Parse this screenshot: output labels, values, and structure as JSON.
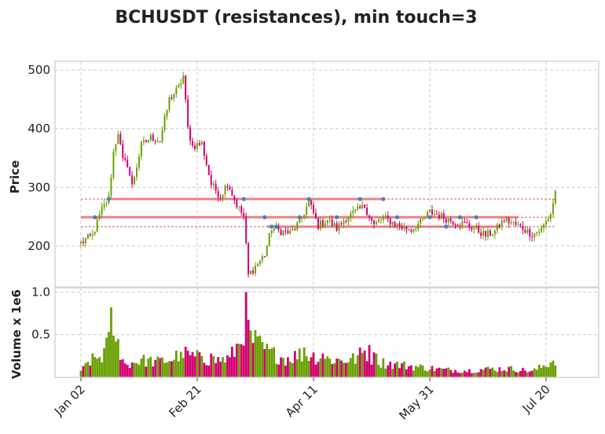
{
  "chart_data": {
    "type": "candlestick",
    "title": "BCHUSDT (resistances), min touch=3",
    "ylabel_price": "Price",
    "ylabel_volume": "Volume x 1e6",
    "x_ticks": [
      "Jan 02",
      "Feb 21",
      "Apr 11",
      "May 31",
      "Jul 20"
    ],
    "price_ylim": [
      130,
      515
    ],
    "price_yticks": [
      200,
      300,
      400,
      500
    ],
    "volume_ylim": [
      0,
      1.05
    ],
    "volume_yticks": [
      0.5,
      1.0
    ],
    "volume_ytick_labels": [
      "0.5",
      "1.0"
    ],
    "grid": true,
    "colors": {
      "up": "#6aa106",
      "down": "#d4006f",
      "level": "#f08080",
      "touch": "#4a7fbf"
    },
    "resistance_levels": [
      {
        "price": 280,
        "touches": 5
      },
      {
        "price": 249,
        "touches": 6
      },
      {
        "price": 233,
        "touches": 3
      }
    ],
    "price_path": [
      [
        0,
        205
      ],
      [
        5,
        218
      ],
      [
        9,
        262
      ],
      [
        12,
        282
      ],
      [
        14,
        360
      ],
      [
        16,
        395
      ],
      [
        18,
        345
      ],
      [
        20,
        340
      ],
      [
        22,
        302
      ],
      [
        26,
        372
      ],
      [
        30,
        385
      ],
      [
        34,
        380
      ],
      [
        38,
        450
      ],
      [
        42,
        470
      ],
      [
        44,
        490
      ],
      [
        46,
        400
      ],
      [
        48,
        370
      ],
      [
        52,
        375
      ],
      [
        56,
        305
      ],
      [
        60,
        285
      ],
      [
        63,
        308
      ],
      [
        67,
        270
      ],
      [
        70,
        250
      ],
      [
        72,
        150
      ],
      [
        76,
        170
      ],
      [
        79,
        185
      ],
      [
        82,
        230
      ],
      [
        86,
        225
      ],
      [
        90,
        222
      ],
      [
        94,
        240
      ],
      [
        98,
        275
      ],
      [
        102,
        235
      ],
      [
        106,
        245
      ],
      [
        110,
        230
      ],
      [
        114,
        248
      ],
      [
        118,
        258
      ],
      [
        122,
        268
      ],
      [
        126,
        235
      ],
      [
        130,
        248
      ],
      [
        134,
        240
      ],
      [
        138,
        232
      ],
      [
        142,
        228
      ],
      [
        146,
        240
      ],
      [
        150,
        258
      ],
      [
        154,
        252
      ],
      [
        158,
        245
      ],
      [
        162,
        240
      ],
      [
        166,
        236
      ],
      [
        170,
        228
      ],
      [
        174,
        218
      ],
      [
        178,
        225
      ],
      [
        182,
        245
      ],
      [
        186,
        238
      ],
      [
        190,
        230
      ],
      [
        194,
        220
      ],
      [
        198,
        228
      ],
      [
        202,
        255
      ],
      [
        204,
        292
      ]
    ],
    "volume_path": [
      [
        0,
        0.06
      ],
      [
        3,
        0.18
      ],
      [
        9,
        0.25
      ],
      [
        13,
        0.45
      ],
      [
        16,
        0.3
      ],
      [
        19,
        0.15
      ],
      [
        26,
        0.2
      ],
      [
        33,
        0.18
      ],
      [
        40,
        0.22
      ],
      [
        43,
        0.3
      ],
      [
        47,
        0.25
      ],
      [
        52,
        0.22
      ],
      [
        58,
        0.2
      ],
      [
        64,
        0.22
      ],
      [
        68,
        0.4
      ],
      [
        71,
        0.7
      ],
      [
        73,
        0.45
      ],
      [
        76,
        0.4
      ],
      [
        80,
        0.3
      ],
      [
        88,
        0.22
      ],
      [
        96,
        0.28
      ],
      [
        104,
        0.22
      ],
      [
        112,
        0.2
      ],
      [
        118,
        0.22
      ],
      [
        122,
        0.3
      ],
      [
        128,
        0.18
      ],
      [
        136,
        0.15
      ],
      [
        146,
        0.12
      ],
      [
        156,
        0.09
      ],
      [
        166,
        0.08
      ],
      [
        176,
        0.1
      ],
      [
        186,
        0.1
      ],
      [
        194,
        0.07
      ],
      [
        200,
        0.15
      ],
      [
        204,
        0.22
      ]
    ],
    "volume_spikes": [
      [
        13,
        0.82
      ],
      [
        16,
        0.45
      ],
      [
        26,
        0.22
      ],
      [
        43,
        0.3
      ],
      [
        52,
        0.25
      ],
      [
        56,
        0.28
      ],
      [
        71,
        1.0
      ],
      [
        73,
        0.55
      ],
      [
        76,
        0.48
      ],
      [
        96,
        0.35
      ],
      [
        104,
        0.28
      ],
      [
        120,
        0.35
      ],
      [
        124,
        0.38
      ],
      [
        127,
        0.28
      ]
    ]
  }
}
